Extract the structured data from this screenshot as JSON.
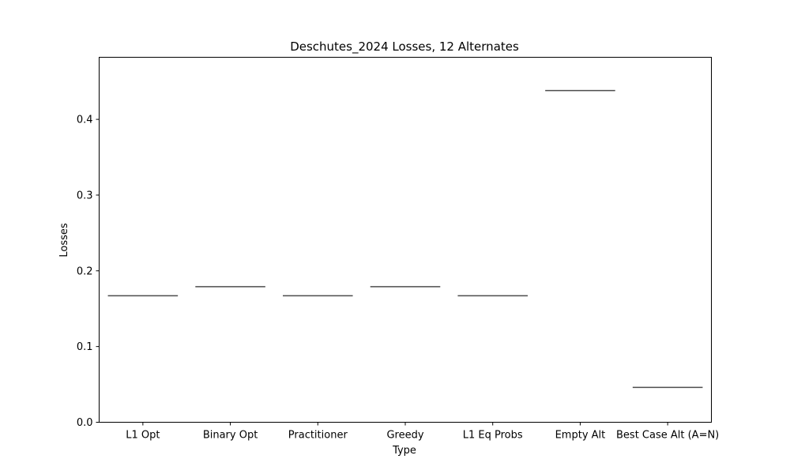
{
  "chart_data": {
    "type": "box",
    "title": "Deschutes_2024 Losses, 12 Alternates",
    "xlabel": "Type",
    "ylabel": "Losses",
    "categories": [
      "L1 Opt",
      "Binary Opt",
      "Practitioner",
      "Greedy",
      "L1 Eq Probs",
      "Empty Alt",
      "Best Case Alt (A=N)"
    ],
    "values": [
      0.167,
      0.179,
      0.167,
      0.179,
      0.167,
      0.438,
      0.046
    ],
    "ylim": [
      0,
      0.482
    ],
    "yticks": [
      0.0,
      0.1,
      0.2,
      0.3,
      0.4
    ],
    "ytick_labels": [
      "0.0",
      "0.1",
      "0.2",
      "0.3",
      "0.4"
    ],
    "grid": false,
    "line_color": "#4d4d4d"
  }
}
